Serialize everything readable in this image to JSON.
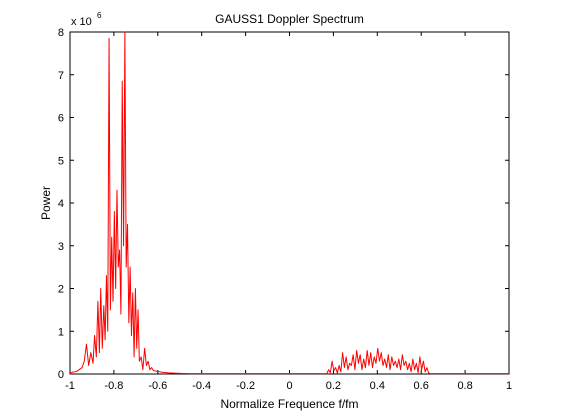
{
  "chart_data": {
    "type": "line",
    "title": "GAUSS1 Doppler Spectrum",
    "xlabel": "Normalize Frequence f/fm",
    "ylabel": "Power",
    "xlim": [
      -1,
      1
    ],
    "ylim": [
      0,
      8000000
    ],
    "y_multiplier_label": "x 10",
    "y_multiplier_exponent": "6",
    "x_ticks": [
      -1,
      -0.8,
      -0.6,
      -0.4,
      -0.2,
      0,
      0.2,
      0.4,
      0.6,
      0.8,
      1
    ],
    "x_tick_labels": [
      "-1",
      "-0.8",
      "-0.6",
      "-0.4",
      "-0.2",
      "0",
      "0.2",
      "0.4",
      "0.6",
      "0.8",
      "1"
    ],
    "y_ticks": [
      0,
      1000000,
      2000000,
      3000000,
      4000000,
      5000000,
      6000000,
      7000000,
      8000000
    ],
    "y_tick_labels": [
      "0",
      "1",
      "2",
      "3",
      "4",
      "5",
      "6",
      "7",
      "8"
    ],
    "grid": false,
    "line_color": "#ff0000",
    "series": [
      {
        "x": [
          -1.0,
          -0.97,
          -0.945,
          -0.935,
          -0.925,
          -0.915,
          -0.905,
          -0.895,
          -0.888,
          -0.88,
          -0.873,
          -0.866,
          -0.86,
          -0.853,
          -0.846,
          -0.84,
          -0.834,
          -0.828,
          -0.822,
          -0.816,
          -0.81,
          -0.804,
          -0.798,
          -0.792,
          -0.786,
          -0.78,
          -0.774,
          -0.768,
          -0.762,
          -0.756,
          -0.75,
          -0.744,
          -0.738,
          -0.732,
          -0.726,
          -0.72,
          -0.714,
          -0.708,
          -0.702,
          -0.696,
          -0.69,
          -0.684,
          -0.676,
          -0.668,
          -0.66,
          -0.652,
          -0.644,
          -0.636,
          -0.628,
          -0.62,
          -0.6,
          -0.58,
          -0.55,
          -0.5,
          -0.45,
          -0.4,
          -0.3,
          -0.2,
          -0.1,
          0.0,
          0.1,
          0.17,
          0.178,
          0.186,
          0.194,
          0.202,
          0.21,
          0.218,
          0.226,
          0.234,
          0.242,
          0.25,
          0.258,
          0.266,
          0.274,
          0.282,
          0.29,
          0.298,
          0.306,
          0.314,
          0.322,
          0.33,
          0.338,
          0.346,
          0.354,
          0.362,
          0.37,
          0.378,
          0.386,
          0.394,
          0.402,
          0.41,
          0.418,
          0.426,
          0.434,
          0.442,
          0.45,
          0.458,
          0.466,
          0.474,
          0.482,
          0.49,
          0.498,
          0.506,
          0.514,
          0.522,
          0.53,
          0.538,
          0.546,
          0.554,
          0.562,
          0.57,
          0.578,
          0.586,
          0.594,
          0.602,
          0.61,
          0.618,
          0.626,
          0.634,
          0.642,
          0.65,
          0.66,
          0.7,
          0.8,
          0.9,
          1.0
        ],
        "y": [
          30000,
          60000,
          150000,
          300000,
          700000,
          200000,
          500000,
          250000,
          900000,
          400000,
          1700000,
          500000,
          2000000,
          600000,
          1600000,
          800000,
          2300000,
          1000000,
          7850000,
          1500000,
          3200000,
          1700000,
          3800000,
          2000000,
          4300000,
          2500000,
          2900000,
          1400000,
          6850000,
          3000000,
          8000000,
          2500000,
          3500000,
          1200000,
          2500000,
          900000,
          1900000,
          400000,
          2000000,
          600000,
          1500000,
          300000,
          400000,
          100000,
          600000,
          200000,
          300000,
          100000,
          150000,
          80000,
          60000,
          40000,
          25000,
          15000,
          10000,
          10000,
          10000,
          10000,
          10000,
          10000,
          10000,
          10000,
          100000,
          30000,
          300000,
          80000,
          150000,
          20000,
          200000,
          50000,
          500000,
          150000,
          400000,
          100000,
          250000,
          200000,
          450000,
          100000,
          550000,
          250000,
          450000,
          100000,
          350000,
          150000,
          550000,
          200000,
          500000,
          150000,
          400000,
          250000,
          600000,
          300000,
          500000,
          200000,
          350000,
          150000,
          450000,
          100000,
          400000,
          200000,
          300000,
          150000,
          350000,
          100000,
          450000,
          200000,
          300000,
          100000,
          250000,
          50000,
          350000,
          100000,
          250000,
          30000,
          400000,
          100000,
          300000,
          50000,
          150000,
          20000,
          10000,
          10000,
          10000,
          10000,
          10000,
          10000,
          10000
        ]
      }
    ]
  }
}
